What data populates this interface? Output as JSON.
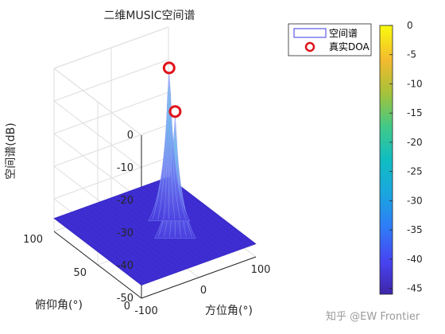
{
  "chart_data": {
    "type": "surface3d",
    "title": "二维MUSIC空间谱",
    "xlabel": "方位角(°)",
    "ylabel": "俯仰角(°)",
    "zlabel": "空间谱(dB)",
    "xlim": [
      -100,
      100
    ],
    "ylim": [
      0,
      100
    ],
    "zlim": [
      -50,
      0
    ],
    "x_ticks": [
      "-100",
      "0",
      "100"
    ],
    "y_ticks": [
      "0",
      "50",
      "100"
    ],
    "z_ticks": [
      "-50",
      "-40",
      "-30",
      "-20",
      "-10",
      "0"
    ],
    "grid": true,
    "colormap": "parula",
    "surface_floor_db": -46,
    "peaks": [
      {
        "azimuth": 20,
        "elevation": 40,
        "db": -10
      },
      {
        "azimuth": 40,
        "elevation": 60,
        "db": -2
      }
    ],
    "legend": {
      "position": "top-right",
      "entries": [
        {
          "label": "空间谱",
          "marker": "surface"
        },
        {
          "label": "真实DOA",
          "marker": "red-circle"
        }
      ]
    },
    "colorbar": {
      "ticks": [
        "0",
        "-5",
        "-10",
        "-15",
        "-20",
        "-25",
        "-30",
        "-35",
        "-40",
        "-45"
      ],
      "range": [
        -46,
        0
      ]
    }
  },
  "watermark": "知乎 @EW Frontier",
  "colors": {
    "floor": "#3d2cd0",
    "peak_low": "#4fa0e8",
    "peak_high": "#28c8b4",
    "marker": "#e0141c"
  }
}
